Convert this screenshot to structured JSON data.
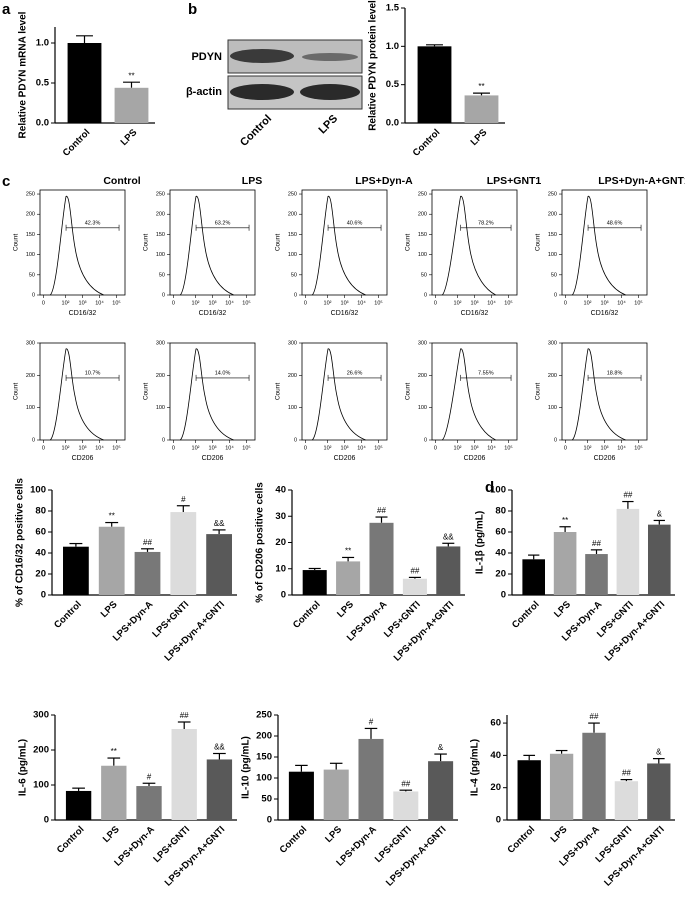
{
  "panel_labels": [
    "a",
    "b",
    "c",
    "d"
  ],
  "blot": {
    "rows": [
      "PDYN",
      "β-actin"
    ],
    "lanes": [
      "Control",
      "LPS"
    ]
  },
  "flow": {
    "conditions": [
      "Control",
      "LPS",
      "LPS+Dyn-A",
      "LPS+GNT1",
      "LPS+Dyn-A+GNT1"
    ],
    "y_label": "Count",
    "rows": [
      {
        "marker": "CD16/32",
        "ylim": [
          0,
          260
        ],
        "yticks": [
          0,
          50,
          100,
          150,
          200,
          250
        ],
        "xticks": [
          "0",
          "10²",
          "10³",
          "10⁴",
          "10⁵"
        ],
        "gates": [
          "42.3%",
          "63.2%",
          "40.6%",
          "78.2%",
          "48.6%"
        ]
      },
      {
        "marker": "CD206",
        "ylim": [
          0,
          300
        ],
        "yticks": [
          0,
          100,
          200,
          300
        ],
        "xticks": [
          "0",
          "10²",
          "10³",
          "10⁴",
          "10⁵"
        ],
        "gates": [
          "10.7%",
          "14.0%",
          "26.6%",
          "7.55%",
          "18.8%"
        ]
      }
    ]
  },
  "chart_data": [
    {
      "type": "bar",
      "ylabel": "Relative PDYN mRNA level",
      "categories": [
        "Control",
        "LPS"
      ],
      "values": [
        1.0,
        0.44
      ],
      "errors": [
        0.09,
        0.07
      ],
      "annotations": [
        null,
        "**"
      ],
      "colors": [
        "#000000",
        "#a6a6a6"
      ],
      "ylim": [
        0,
        1.2
      ],
      "yticks": [
        {
          "value": 0,
          "label": "0.0"
        },
        {
          "value": 0.5,
          "label": "0.5"
        },
        {
          "value": 1,
          "label": "1.0"
        }
      ]
    },
    {
      "type": "bar",
      "ylabel": "Relative PDYN protein level",
      "categories": [
        "Control",
        "LPS"
      ],
      "values": [
        1.0,
        0.36
      ],
      "errors": [
        0.02,
        0.03
      ],
      "annotations": [
        null,
        "**"
      ],
      "colors": [
        "#000000",
        "#a6a6a6"
      ],
      "ylim": [
        0,
        1.5
      ],
      "yticks": [
        {
          "value": 0,
          "label": "0.0"
        },
        {
          "value": 0.5,
          "label": "0.5"
        },
        {
          "value": 1,
          "label": "1.0"
        },
        {
          "value": 1.5,
          "label": "1.5"
        }
      ]
    },
    {
      "type": "bar",
      "ylabel": "% of CD16/32 positive cells",
      "categories": [
        "Control",
        "LPS",
        "LPS+Dyn-A",
        "LPS+GNTI",
        "LPS+Dyn-A+GNTI"
      ],
      "values": [
        46,
        65,
        41,
        79,
        58
      ],
      "errors": [
        3,
        4,
        3,
        6,
        4
      ],
      "annotations": [
        null,
        "**",
        "##",
        "#",
        "&&"
      ],
      "colors": [
        "#000000",
        "#a6a6a6",
        "#787878",
        "#dcdcdc",
        "#595959"
      ],
      "ylim": [
        0,
        100
      ],
      "yticks": [
        0,
        20,
        40,
        60,
        80,
        100
      ]
    },
    {
      "type": "bar",
      "ylabel": "% of CD206 positive cells",
      "categories": [
        "Control",
        "LPS",
        "LPS+Dyn-A",
        "LPS+GNTI",
        "LPS+Dyn-A+GNTI"
      ],
      "values": [
        9.5,
        12.8,
        27.5,
        6.2,
        18.5
      ],
      "errors": [
        0.6,
        1.5,
        2.2,
        0.5,
        1.2
      ],
      "annotations": [
        null,
        "**",
        "##",
        "##",
        "&&"
      ],
      "colors": [
        "#000000",
        "#a6a6a6",
        "#787878",
        "#dcdcdc",
        "#595959"
      ],
      "ylim": [
        0,
        40
      ],
      "yticks": [
        0,
        10,
        20,
        30,
        40
      ]
    },
    {
      "type": "bar",
      "ylabel": "IL-1β (pg/mL)",
      "categories": [
        "Control",
        "LPS",
        "LPS+Dyn-A",
        "LPS+GNTI",
        "LPS+Dyn-A+GNTI"
      ],
      "values": [
        34,
        60,
        39,
        82,
        67
      ],
      "errors": [
        4,
        5,
        4,
        7,
        4
      ],
      "annotations": [
        null,
        "**",
        "##",
        "##",
        "&"
      ],
      "colors": [
        "#000000",
        "#a6a6a6",
        "#787878",
        "#dcdcdc",
        "#595959"
      ],
      "ylim": [
        0,
        100
      ],
      "yticks": [
        0,
        20,
        40,
        60,
        80,
        100
      ]
    },
    {
      "type": "bar",
      "ylabel": "IL-6 (pg/mL)",
      "categories": [
        "Control",
        "LPS",
        "LPS+Dyn-A",
        "LPS+GNTI",
        "LPS+Dyn-A+GNTI"
      ],
      "values": [
        83,
        155,
        97,
        260,
        173
      ],
      "errors": [
        8,
        22,
        8,
        20,
        17
      ],
      "annotations": [
        null,
        "**",
        "#",
        "##",
        "&&"
      ],
      "colors": [
        "#000000",
        "#a6a6a6",
        "#787878",
        "#dcdcdc",
        "#595959"
      ],
      "ylim": [
        0,
        300
      ],
      "yticks": [
        0,
        100,
        200,
        300
      ]
    },
    {
      "type": "bar",
      "ylabel": "IL-10 (pg/mL)",
      "categories": [
        "Control",
        "LPS",
        "LPS+Dyn-A",
        "LPS+GNTI",
        "LPS+Dyn-A+GNTI"
      ],
      "values": [
        115,
        120,
        193,
        68,
        140
      ],
      "errors": [
        15,
        15,
        25,
        3,
        17
      ],
      "annotations": [
        null,
        null,
        "#",
        "##",
        "&"
      ],
      "colors": [
        "#000000",
        "#a6a6a6",
        "#787878",
        "#dcdcdc",
        "#595959"
      ],
      "ylim": [
        0,
        250
      ],
      "yticks": [
        0,
        50,
        100,
        150,
        200,
        250
      ]
    },
    {
      "type": "bar",
      "ylabel": "IL-4 (pg/mL)",
      "categories": [
        "Control",
        "LPS",
        "LPS+Dyn-A",
        "LPS+GNTI",
        "LPS+Dyn-A+GNTI"
      ],
      "values": [
        37,
        41,
        54,
        24,
        35
      ],
      "errors": [
        3,
        2,
        6,
        1,
        3
      ],
      "annotations": [
        null,
        null,
        "##",
        "##",
        "&"
      ],
      "colors": [
        "#000000",
        "#a6a6a6",
        "#787878",
        "#dcdcdc",
        "#595959"
      ],
      "ylim": [
        0,
        65
      ],
      "yticks": [
        0,
        20,
        40,
        60
      ]
    }
  ]
}
